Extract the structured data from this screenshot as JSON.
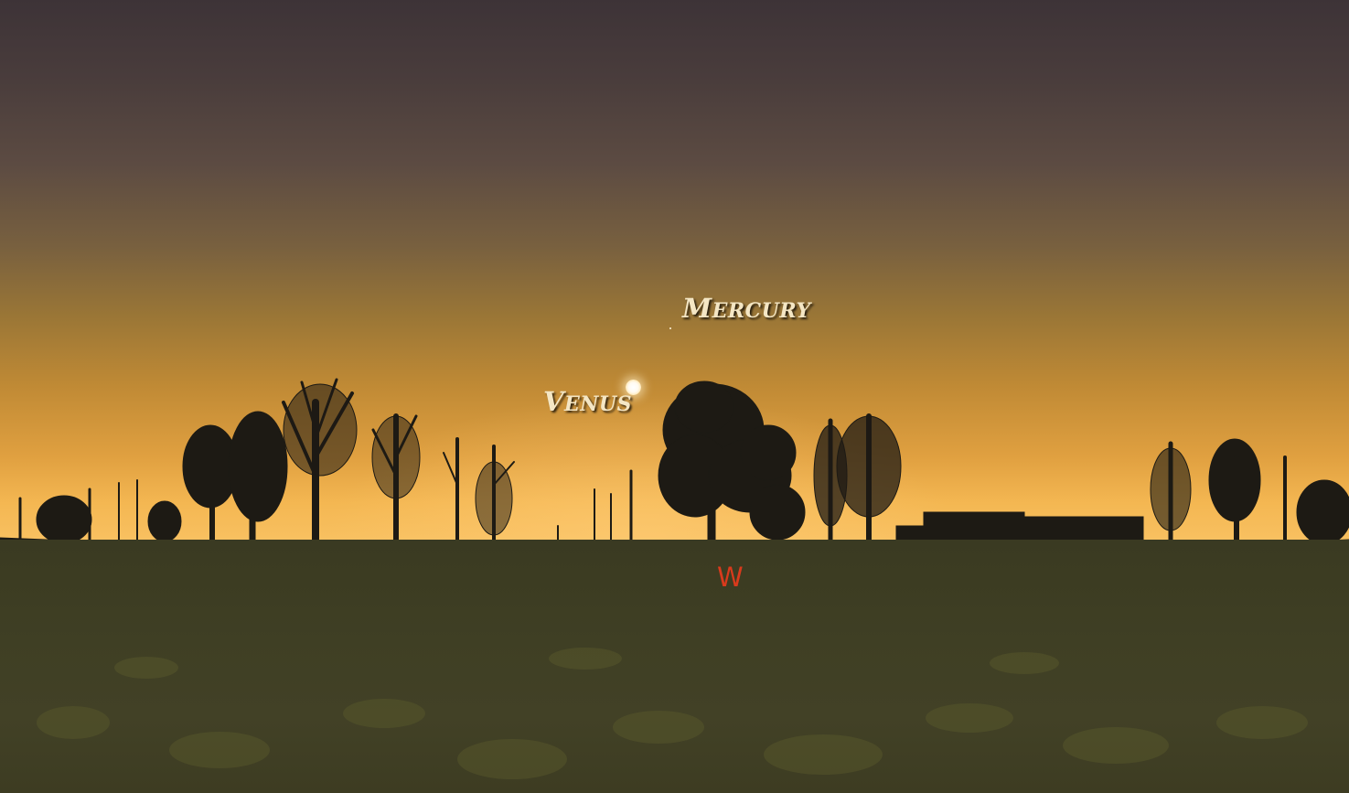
{
  "sky_labels": {
    "mercury": {
      "first": "M",
      "rest": "ERCURY"
    },
    "venus": {
      "first": "V",
      "rest": "ENUS"
    }
  },
  "compass": {
    "west": "W",
    "color": "#d93a1c"
  },
  "colors": {
    "sky_top": "#3d3337",
    "horizon_glow": "#f8c060",
    "field": "#3f3f24",
    "label_text": "#f4e6c4"
  }
}
